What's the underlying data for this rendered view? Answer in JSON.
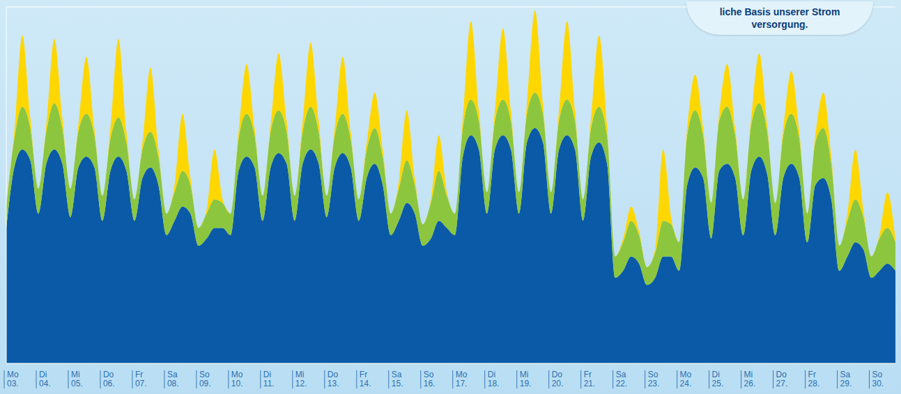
{
  "chart_data": {
    "type": "area",
    "stacked": true,
    "grid": true,
    "tick_labels": "x",
    "annotation": "liche Basis unserer Strom versorgung.",
    "ylim": [
      0,
      100
    ],
    "yticks": [
      0,
      20,
      40,
      60,
      80,
      100
    ],
    "categories": [
      "Mo 03.",
      null,
      null,
      null,
      "Di 04.",
      null,
      null,
      null,
      "Mi 05.",
      null,
      null,
      null,
      "Do 06.",
      null,
      null,
      null,
      "Fr 07.",
      null,
      null,
      null,
      "Sa 08.",
      null,
      null,
      null,
      "So 09.",
      null,
      null,
      null,
      "Mo 10.",
      null,
      null,
      null,
      "Di 11.",
      null,
      null,
      null,
      "Mi 12.",
      null,
      null,
      null,
      "Do 13.",
      null,
      null,
      null,
      "Fr 14.",
      null,
      null,
      null,
      "Sa 15.",
      null,
      null,
      null,
      "So 16.",
      null,
      null,
      null,
      "Mo 17.",
      null,
      null,
      null,
      "Di 18.",
      null,
      null,
      null,
      "Mi 19.",
      null,
      null,
      null,
      "Do 20.",
      null,
      null,
      null,
      "Fr 21.",
      null,
      null,
      null,
      "Sa 22.",
      null,
      null,
      null,
      "So 23.",
      null,
      null,
      null,
      "Mo 24.",
      null,
      null,
      null,
      "Di 25.",
      null,
      null,
      null,
      "Mi 26.",
      null,
      null,
      null,
      "Do 27.",
      null,
      null,
      null,
      "Fr 28.",
      null,
      null,
      null,
      "Sa 29.",
      null,
      null,
      null,
      "So 30.",
      null,
      null,
      null
    ],
    "series": [
      {
        "color": "#0a5aa8",
        "values": [
          38,
          55,
          60,
          57,
          42,
          56,
          60,
          56,
          41,
          55,
          58,
          55,
          40,
          54,
          58,
          54,
          40,
          52,
          55,
          50,
          36,
          40,
          44,
          42,
          33,
          35,
          38,
          38,
          36,
          54,
          58,
          55,
          40,
          55,
          59,
          56,
          40,
          56,
          60,
          56,
          41,
          55,
          59,
          55,
          40,
          52,
          56,
          50,
          36,
          40,
          45,
          42,
          33,
          35,
          40,
          38,
          36,
          58,
          64,
          60,
          42,
          60,
          64,
          60,
          42,
          62,
          66,
          62,
          42,
          60,
          64,
          60,
          40,
          58,
          62,
          56,
          24,
          26,
          30,
          28,
          22,
          24,
          30,
          30,
          26,
          50,
          55,
          52,
          35,
          54,
          56,
          52,
          36,
          54,
          58,
          53,
          36,
          52,
          56,
          52,
          34,
          50,
          52,
          46,
          26,
          30,
          34,
          32,
          24,
          26,
          28,
          26
        ]
      },
      {
        "color": "#8cc63f",
        "values": [
          6,
          8,
          12,
          9,
          7,
          9,
          13,
          10,
          8,
          10,
          12,
          9,
          7,
          9,
          11,
          8,
          6,
          8,
          10,
          8,
          6,
          8,
          10,
          8,
          5,
          7,
          8,
          7,
          6,
          9,
          12,
          9,
          7,
          10,
          12,
          9,
          7,
          9,
          12,
          9,
          6,
          9,
          11,
          8,
          6,
          8,
          10,
          8,
          6,
          9,
          12,
          8,
          6,
          10,
          14,
          9,
          6,
          8,
          10,
          8,
          6,
          8,
          10,
          8,
          6,
          8,
          10,
          8,
          6,
          8,
          10,
          8,
          6,
          8,
          10,
          8,
          6,
          8,
          10,
          8,
          5,
          7,
          10,
          9,
          8,
          14,
          16,
          12,
          10,
          14,
          16,
          12,
          10,
          13,
          15,
          12,
          9,
          12,
          14,
          11,
          8,
          12,
          14,
          10,
          7,
          10,
          12,
          9,
          6,
          9,
          10,
          8
        ]
      },
      {
        "color": "#ffd700",
        "values": [
          0,
          2,
          20,
          3,
          0,
          2,
          18,
          3,
          0,
          2,
          16,
          2,
          0,
          3,
          22,
          3,
          0,
          2,
          18,
          2,
          0,
          2,
          16,
          2,
          0,
          1,
          14,
          1,
          0,
          2,
          14,
          2,
          0,
          2,
          16,
          3,
          0,
          3,
          18,
          3,
          0,
          2,
          16,
          2,
          0,
          2,
          10,
          2,
          0,
          2,
          14,
          2,
          0,
          1,
          10,
          1,
          0,
          3,
          22,
          3,
          0,
          3,
          20,
          3,
          0,
          3,
          23,
          3,
          0,
          3,
          22,
          3,
          0,
          3,
          20,
          3,
          0,
          1,
          4,
          1,
          0,
          1,
          20,
          2,
          0,
          2,
          10,
          2,
          0,
          2,
          12,
          2,
          0,
          2,
          14,
          2,
          0,
          2,
          12,
          2,
          0,
          2,
          10,
          2,
          0,
          2,
          14,
          2,
          0,
          1,
          10,
          1
        ]
      }
    ]
  }
}
